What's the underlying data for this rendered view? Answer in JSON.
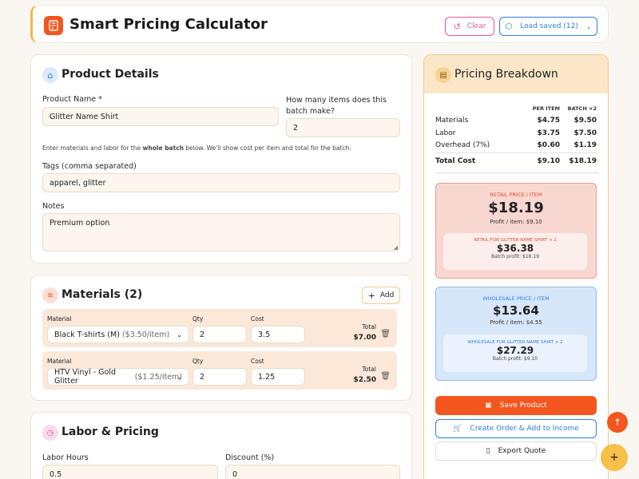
{
  "header": {
    "title": "Smart Pricing Calculator",
    "clear_label": "Clear",
    "load_saved_label": "Load saved (12)"
  },
  "product": {
    "title": "Product Details",
    "name_label": "Product Name *",
    "name_value": "Glitter Name Shirt",
    "batch_label": "How many items does this batch make?",
    "batch_value": "2",
    "hint_pre": "Enter materials and labor for the ",
    "hint_bold": "whole batch",
    "hint_post": " below. We'll show cost per item and total for the batch.",
    "tags_label": "Tags (comma separated)",
    "tags_value": "apparel, glitter",
    "notes_label": "Notes",
    "notes_value": "Premium option"
  },
  "materials": {
    "title": "Materials (2)",
    "add_label": "Add",
    "col_material": "Material",
    "col_qty": "Qty",
    "col_cost": "Cost",
    "col_total": "Total",
    "items": [
      {
        "name": "Black T-shirts (M)",
        "unit": "($3.50/item)",
        "qty": "2",
        "cost": "3.5",
        "total": "$7.00"
      },
      {
        "name": "HTV Vinyl - Gold Glitter",
        "unit": "($1.25/item)",
        "qty": "2",
        "cost": "1.25",
        "total": "$2.50"
      }
    ]
  },
  "labor": {
    "title": "Labor & Pricing",
    "hours_label": "Labor Hours",
    "hours_value": "0.5",
    "discount_label": "Discount (%)",
    "discount_value": "0"
  },
  "breakdown": {
    "title": "Pricing Breakdown",
    "col_per_item": "PER ITEM",
    "col_batch": "BATCH ×2",
    "rows": [
      {
        "label": "Materials",
        "per_item": "$4.75",
        "batch": "$9.50"
      },
      {
        "label": "Labor",
        "per_item": "$3.75",
        "batch": "$7.50"
      },
      {
        "label": "Overhead (7%)",
        "per_item": "$0.60",
        "batch": "$1.19"
      }
    ],
    "total_label": "Total Cost",
    "total_per_item": "$9.10",
    "total_batch": "$18.19",
    "retail": {
      "label": "RETAIL PRICE / ITEM",
      "price": "$18.19",
      "profit": "Profit / item: $9.10",
      "batch_label": "RETAIL FOR GLITTER NAME SHIRT × 2",
      "batch_price": "$36.38",
      "batch_profit": "Batch profit: $18.19"
    },
    "wholesale": {
      "label": "WHOLESALE PRICE / ITEM",
      "price": "$13.64",
      "profit": "Profit / item: $4.55",
      "batch_label": "WHOLESALE FOR GLITTER NAME SHIRT × 2",
      "batch_price": "$27.29",
      "batch_profit": "Batch profit: $9.10"
    },
    "save_label": "Save Product",
    "order_label": "Create Order & Add to Income",
    "export_label": "Export Quote"
  },
  "colors": {
    "accent": "#f4561f",
    "blue": "#2f7de1",
    "pink": "#e8559a"
  }
}
